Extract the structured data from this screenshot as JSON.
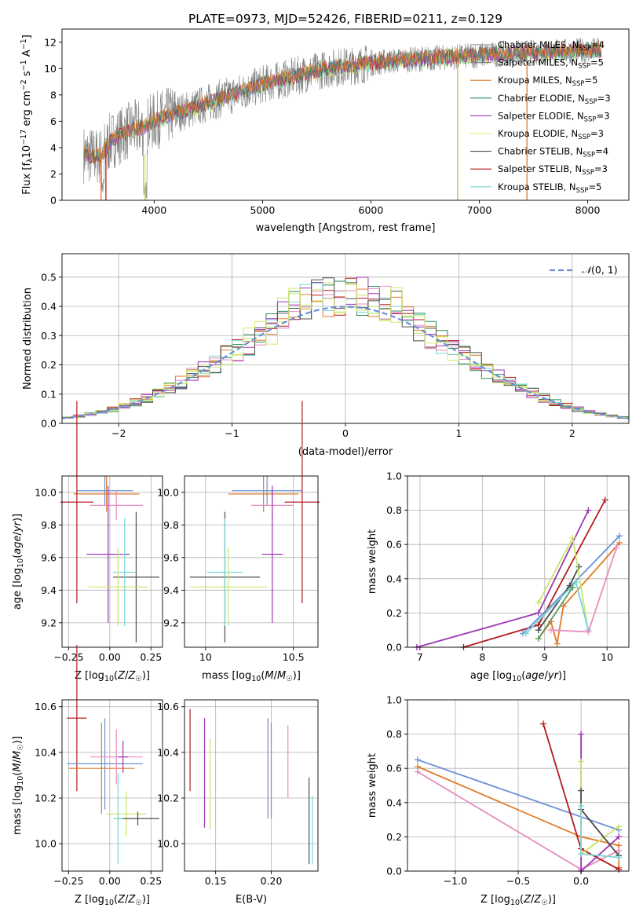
{
  "figure_title": "PLATE=0973, MJD=52426, FIBERID=0211, z=0.129",
  "colors": [
    "#808080",
    "#7f7f7f",
    "#e07b2a",
    "#2e8b57",
    "#9c37b3",
    "#d6e867",
    "#4d4d4d",
    "#b31b1b",
    "#76d6d6",
    "#6b8fd8",
    "#e88cc0",
    "#c9e56a"
  ],
  "chart_data": [
    {
      "id": "spectrum",
      "type": "line",
      "title": "PLATE=0973, MJD=52426, FIBERID=0211, z=0.129",
      "xlabel": "wavelength [Angstrom, rest frame]",
      "ylabel": "Flux [f_λ 10^-17 erg cm^-2 s^-1 A^-1]",
      "xlim": [
        3150,
        8380
      ],
      "ylim": [
        0,
        13
      ],
      "xticks": [
        "4000",
        "5000",
        "6000",
        "7000",
        "8000"
      ],
      "yticks": [
        "0",
        "2",
        "4",
        "6",
        "8",
        "10",
        "12"
      ],
      "legend_loc": "upper-right",
      "legend": [
        {
          "name": "Chabrier MILES, N_SSP=4",
          "color": "#808080"
        },
        {
          "name": "Salpeter MILES, N_SSP=5",
          "color": "#7f7f7f"
        },
        {
          "name": "Kroupa MILES, N_SSP=5",
          "color": "#e07b2a"
        },
        {
          "name": "Chabrier ELODIE, N_SSP=3",
          "color": "#2e8b57"
        },
        {
          "name": "Salpeter ELODIE, N_SSP=3",
          "color": "#9c37b3"
        },
        {
          "name": "Kroupa ELODIE, N_SSP=3",
          "color": "#d6e867"
        },
        {
          "name": "Chabrier STELIB, N_SSP=4",
          "color": "#4d4d4d"
        },
        {
          "name": "Salpeter STELIB, N_SSP=3",
          "color": "#b31b1b"
        },
        {
          "name": "Kroupa STELIB, N_SSP=5",
          "color": "#76d6d6"
        }
      ],
      "continuum": [
        [
          3350,
          3.5
        ],
        [
          3500,
          3.3
        ],
        [
          3600,
          4.5
        ],
        [
          3700,
          5.0
        ],
        [
          3800,
          5.4
        ],
        [
          3900,
          5.5
        ],
        [
          4000,
          6.0
        ],
        [
          4200,
          6.6
        ],
        [
          4400,
          7.1
        ],
        [
          4600,
          7.7
        ],
        [
          4800,
          8.2
        ],
        [
          5000,
          8.8
        ],
        [
          5200,
          9.2
        ],
        [
          5400,
          9.6
        ],
        [
          5600,
          10.0
        ],
        [
          5800,
          10.2
        ],
        [
          6000,
          10.4
        ],
        [
          6200,
          10.6
        ],
        [
          6400,
          10.7
        ],
        [
          6600,
          10.8
        ],
        [
          6800,
          10.9
        ],
        [
          7000,
          11.0
        ],
        [
          7200,
          11.1
        ],
        [
          7500,
          11.2
        ],
        [
          7800,
          11.3
        ],
        [
          8100,
          11.4
        ]
      ]
    },
    {
      "id": "residual-hist",
      "type": "bar",
      "xlabel": "(data-model)/error",
      "ylabel": "Normed distribution",
      "xlim": [
        -2.5,
        2.5
      ],
      "ylim": [
        0,
        0.58
      ],
      "xticks": [
        "-2",
        "-1",
        "0",
        "1",
        "2"
      ],
      "yticks": [
        "0.0",
        "0.1",
        "0.2",
        "0.3",
        "0.4",
        "0.5"
      ],
      "legend": [
        {
          "name": "N(0,1)",
          "color": "#6b8fd8",
          "style": "dashed"
        }
      ],
      "bin_width": 0.1
    },
    {
      "id": "age-vs-Z",
      "type": "scatter",
      "xlabel": "Z [log10(Z/Z☉)]",
      "ylabel": "age [log10(age/yr)]",
      "xlim": [
        -0.29,
        0.32
      ],
      "ylim": [
        9.05,
        10.1
      ],
      "xticks": [
        -0.25,
        0.0,
        0.25
      ],
      "yticks": [
        9.2,
        9.4,
        9.6,
        9.8,
        10.0
      ],
      "points": [
        {
          "x": -0.03,
          "y": 10.01,
          "xerr": 0.17,
          "yerr": 0.09,
          "color": "#6b8fd8"
        },
        {
          "x": -0.02,
          "y": 9.99,
          "xerr": 0.2,
          "yerr": 0.11,
          "color": "#e07b2a"
        },
        {
          "x": -0.2,
          "y": 9.94,
          "xerr": 0.1,
          "yerr": 0.62,
          "color": "#b31b1b"
        },
        {
          "x": 0.04,
          "y": 9.92,
          "xerr": 0.16,
          "yerr": 0.09,
          "color": "#e88cc0"
        },
        {
          "x": -0.01,
          "y": 9.62,
          "xerr": 0.13,
          "yerr": 0.42,
          "color": "#9c37b3"
        },
        {
          "x": 0.16,
          "y": 9.48,
          "xerr": 0.14,
          "yerr": 0.4,
          "color": "#4d4d4d"
        },
        {
          "x": 0.09,
          "y": 9.51,
          "xerr": 0.07,
          "yerr": 0.33,
          "color": "#76d6d6"
        },
        {
          "x": 0.05,
          "y": 9.42,
          "xerr": 0.18,
          "yerr": 0.24,
          "color": "#c9e56a"
        }
      ]
    },
    {
      "id": "age-vs-mass",
      "type": "scatter",
      "xlabel": "mass [log10(M/M☉)]",
      "ylabel": "",
      "xlim": [
        9.88,
        10.64
      ],
      "ylim": [
        9.05,
        10.1
      ],
      "xticks": [
        10.0,
        10.5
      ],
      "yticks": [
        9.2,
        9.4,
        9.6,
        9.8,
        10.0
      ],
      "points": [
        {
          "x": 10.35,
          "y": 10.01,
          "xerr": 0.2,
          "yerr": 0.09,
          "color": "#6b8fd8"
        },
        {
          "x": 10.33,
          "y": 9.99,
          "xerr": 0.2,
          "yerr": 0.11,
          "color": "#e07b2a"
        },
        {
          "x": 10.55,
          "y": 9.94,
          "xerr": 0.1,
          "yerr": 0.62,
          "color": "#b31b1b"
        },
        {
          "x": 10.38,
          "y": 9.92,
          "xerr": 0.12,
          "yerr": 0.09,
          "color": "#e88cc0"
        },
        {
          "x": 10.38,
          "y": 9.62,
          "xerr": 0.06,
          "yerr": 0.42,
          "color": "#9c37b3"
        },
        {
          "x": 10.11,
          "y": 9.48,
          "xerr": 0.2,
          "yerr": 0.4,
          "color": "#4d4d4d"
        },
        {
          "x": 10.11,
          "y": 9.51,
          "xerr": 0.1,
          "yerr": 0.33,
          "color": "#76d6d6"
        },
        {
          "x": 10.13,
          "y": 9.42,
          "xerr": 0.22,
          "yerr": 0.24,
          "color": "#c9e56a"
        }
      ]
    },
    {
      "id": "mass-weight-vs-age",
      "type": "line",
      "xlabel": "age [log10(age/yr)]",
      "ylabel": "mass weight",
      "xlim": [
        6.8,
        10.35
      ],
      "ylim": [
        0,
        1.0
      ],
      "xticks": [
        7,
        8,
        9,
        10
      ],
      "yticks": [
        0.0,
        0.2,
        0.4,
        0.6,
        0.8,
        1.0
      ],
      "series": [
        {
          "color": "#b31b1b",
          "points": [
            [
              7.7,
              0.0
            ],
            [
              8.9,
              0.13
            ],
            [
              9.97,
              0.86
            ]
          ]
        },
        {
          "color": "#9c37b3",
          "points": [
            [
              6.95,
              0.0
            ],
            [
              8.9,
              0.2
            ],
            [
              9.7,
              0.8
            ]
          ]
        },
        {
          "color": "#6b8fd8",
          "points": [
            [
              8.65,
              0.08
            ],
            [
              9.4,
              0.35
            ],
            [
              10.2,
              0.65
            ]
          ]
        },
        {
          "color": "#e07b2a",
          "points": [
            [
              8.9,
              0.05
            ],
            [
              9.1,
              0.15
            ],
            [
              9.2,
              0.02
            ],
            [
              9.3,
              0.24
            ],
            [
              10.2,
              0.61
            ]
          ]
        },
        {
          "color": "#4d4d4d",
          "points": [
            [
              8.9,
              0.1
            ],
            [
              9.4,
              0.36
            ],
            [
              9.55,
              0.47
            ]
          ]
        },
        {
          "color": "#c9e56a",
          "points": [
            [
              8.9,
              0.26
            ],
            [
              9.45,
              0.64
            ],
            [
              9.7,
              0.09
            ]
          ]
        },
        {
          "color": "#76d6d6",
          "points": [
            [
              8.7,
              0.08
            ],
            [
              9.5,
              0.38
            ],
            [
              9.7,
              0.1
            ]
          ]
        },
        {
          "color": "#e88cc0",
          "points": [
            [
              9.1,
              0.1
            ],
            [
              9.7,
              0.09
            ],
            [
              10.15,
              0.58
            ]
          ]
        },
        {
          "color": "#5a9a5a",
          "points": [
            [
              8.9,
              0.05
            ],
            [
              9.45,
              0.35
            ]
          ]
        }
      ]
    },
    {
      "id": "mass-vs-Z",
      "type": "scatter",
      "xlabel": "Z [log10(Z/Z☉)]",
      "ylabel": "mass [log10(M/M☉)]",
      "xlim": [
        -0.29,
        0.32
      ],
      "ylim": [
        9.88,
        10.63
      ],
      "xticks": [
        -0.25,
        0.0,
        0.25
      ],
      "yticks": [
        10.0,
        10.2,
        10.4,
        10.6
      ],
      "points": [
        {
          "x": -0.2,
          "y": 10.55,
          "xerr": 0.06,
          "yerr": 0.32,
          "color": "#b31b1b"
        },
        {
          "x": -0.03,
          "y": 10.35,
          "xerr": 0.23,
          "yerr": 0.2,
          "color": "#6b8fd8"
        },
        {
          "x": -0.05,
          "y": 10.33,
          "xerr": 0.2,
          "yerr": 0.2,
          "color": "#e07b2a"
        },
        {
          "x": 0.04,
          "y": 10.38,
          "xerr": 0.16,
          "yerr": 0.12,
          "color": "#e88cc0"
        },
        {
          "x": 0.08,
          "y": 10.38,
          "xerr": 0.03,
          "yerr": 0.07,
          "color": "#9c37b3"
        },
        {
          "x": 0.1,
          "y": 10.13,
          "xerr": 0.12,
          "yerr": 0.1,
          "color": "#c9e56a"
        },
        {
          "x": 0.17,
          "y": 10.11,
          "xerr": 0.13,
          "yerr": 0.03,
          "color": "#4d4d4d"
        },
        {
          "x": 0.05,
          "y": 10.11,
          "xerr": 0.03,
          "yerr": 0.2,
          "color": "#76d6d6"
        }
      ]
    },
    {
      "id": "mass-vs-EBV",
      "type": "scatter",
      "xlabel": "E(B-V)",
      "ylabel": "",
      "xlim": [
        0.122,
        0.242
      ],
      "ylim": [
        9.88,
        10.63
      ],
      "xticks": [
        0.15,
        0.2
      ],
      "yticks": [
        10.0,
        10.2,
        10.4,
        10.6
      ],
      "points": [
        {
          "x": 0.127,
          "y": 10.41,
          "yerr": 0.18,
          "color": "#b31b1b"
        },
        {
          "x": 0.14,
          "y": 10.31,
          "yerr": 0.24,
          "color": "#9c37b3"
        },
        {
          "x": 0.145,
          "y": 10.26,
          "yerr": 0.2,
          "color": "#c9e56a"
        },
        {
          "x": 0.197,
          "y": 10.33,
          "yerr": 0.22,
          "color": "#6b8fd8"
        },
        {
          "x": 0.2,
          "y": 10.32,
          "yerr": 0.21,
          "color": "#e07b2a"
        },
        {
          "x": 0.215,
          "y": 10.36,
          "yerr": 0.16,
          "color": "#e88cc0"
        },
        {
          "x": 0.234,
          "y": 10.1,
          "yerr": 0.19,
          "color": "#4d4d4d"
        },
        {
          "x": 0.237,
          "y": 10.06,
          "yerr": 0.15,
          "color": "#76d6d6"
        }
      ]
    },
    {
      "id": "mass-weight-vs-Z",
      "type": "line",
      "xlabel": "Z [log10(Z/Z☉)]",
      "ylabel": "mass weight",
      "xlim": [
        -1.38,
        0.38
      ],
      "ylim": [
        0,
        1.0
      ],
      "xticks": [
        -1.0,
        -0.5,
        0.0
      ],
      "yticks": [
        0.0,
        0.2,
        0.4,
        0.6,
        0.8,
        1.0
      ],
      "series": [
        {
          "color": "#6b8fd8",
          "points": [
            [
              -1.3,
              0.65
            ],
            [
              0.3,
              0.24
            ]
          ]
        },
        {
          "color": "#e07b2a",
          "points": [
            [
              -1.3,
              0.61
            ],
            [
              0.0,
              0.2
            ],
            [
              0.3,
              0.15
            ],
            [
              0.3,
              0.02
            ]
          ]
        },
        {
          "color": "#e88cc0",
          "points": [
            [
              -1.3,
              0.58
            ],
            [
              0.0,
              0.01
            ],
            [
              0.3,
              0.12
            ]
          ]
        },
        {
          "color": "#b31b1b",
          "points": [
            [
              -0.3,
              0.86
            ],
            [
              0.0,
              0.13
            ],
            [
              0.3,
              0.01
            ]
          ]
        },
        {
          "color": "#9c37b3",
          "points": [
            [
              0.0,
              0.8
            ],
            [
              0.0,
              0.0
            ],
            [
              0.3,
              0.2
            ]
          ]
        },
        {
          "color": "#c9e56a",
          "points": [
            [
              0.0,
              0.64
            ],
            [
              0.0,
              0.1
            ],
            [
              0.3,
              0.26
            ]
          ]
        },
        {
          "color": "#4d4d4d",
          "points": [
            [
              0.0,
              0.47
            ],
            [
              0.0,
              0.36
            ],
            [
              0.3,
              0.09
            ]
          ]
        },
        {
          "color": "#76d6d6",
          "points": [
            [
              0.0,
              0.38
            ],
            [
              0.0,
              0.1
            ],
            [
              0.3,
              0.08
            ]
          ]
        }
      ]
    }
  ]
}
